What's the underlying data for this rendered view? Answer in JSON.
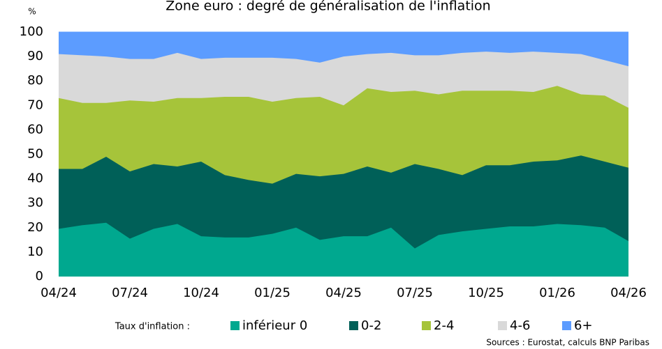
{
  "chart_data": {
    "type": "stacked_area",
    "title": "Zone euro : degré de généralisation de l'inflation",
    "y_unit": "%",
    "categories": [
      "04/24",
      null,
      null,
      "07/24",
      null,
      null,
      "10/24",
      null,
      null,
      "01/25",
      null,
      null,
      "04/25",
      null,
      null,
      "07/25",
      null,
      null,
      "10/25",
      null,
      null,
      "01/26",
      null,
      null,
      "04/26"
    ],
    "series": [
      {
        "name": "inférieur 0",
        "color": "#00a88f",
        "values": [
          19.5,
          21,
          22,
          15.5,
          19.5,
          21.5,
          16.5,
          16,
          16,
          17.5,
          20,
          15,
          16.5,
          16.5,
          20,
          11.5,
          17,
          18.5,
          19.5,
          20.5,
          20.5,
          21.5,
          21,
          20,
          14.5
        ]
      },
      {
        "name": "0-2",
        "color": "#006058",
        "values": [
          24.5,
          23,
          27,
          27.5,
          26.5,
          23.5,
          30.5,
          25.5,
          23.5,
          20.5,
          22,
          26,
          25.5,
          28.5,
          22.5,
          34.5,
          27,
          23,
          26,
          25,
          26.5,
          26,
          28.5,
          27,
          30
        ]
      },
      {
        "name": "2-4",
        "color": "#a6c43a",
        "values": [
          29,
          27,
          22,
          29,
          25.5,
          28,
          26,
          32,
          34,
          33.5,
          31,
          32.5,
          28,
          32,
          33,
          30,
          30.5,
          34.5,
          30.5,
          30.5,
          28.5,
          30.5,
          25,
          27,
          24.5
        ]
      },
      {
        "name": "4-6",
        "color": "#d9d9d9",
        "values": [
          18,
          19.5,
          19,
          17,
          17.5,
          18.5,
          16,
          16,
          16,
          18,
          16,
          14,
          20,
          14,
          16,
          14.5,
          16,
          15.5,
          16,
          15.5,
          16.5,
          13.5,
          16.5,
          14.5,
          17
        ]
      },
      {
        "name": "6+",
        "color": "#5c9cff",
        "values": [
          9,
          9.5,
          10,
          11,
          11,
          8.5,
          11,
          10.5,
          10.5,
          10.5,
          11,
          12.5,
          10,
          9,
          8.5,
          9.5,
          9.5,
          8.5,
          8,
          8.5,
          8,
          8.5,
          9,
          11.5,
          14
        ]
      }
    ],
    "ylim": [
      0,
      100
    ],
    "yticks": [
      0,
      10,
      20,
      30,
      40,
      50,
      60,
      70,
      80,
      90,
      100
    ],
    "legend_title": "Taux d'inflation :",
    "source": "Sources : Eurostat, calculs BNP Paribas"
  }
}
